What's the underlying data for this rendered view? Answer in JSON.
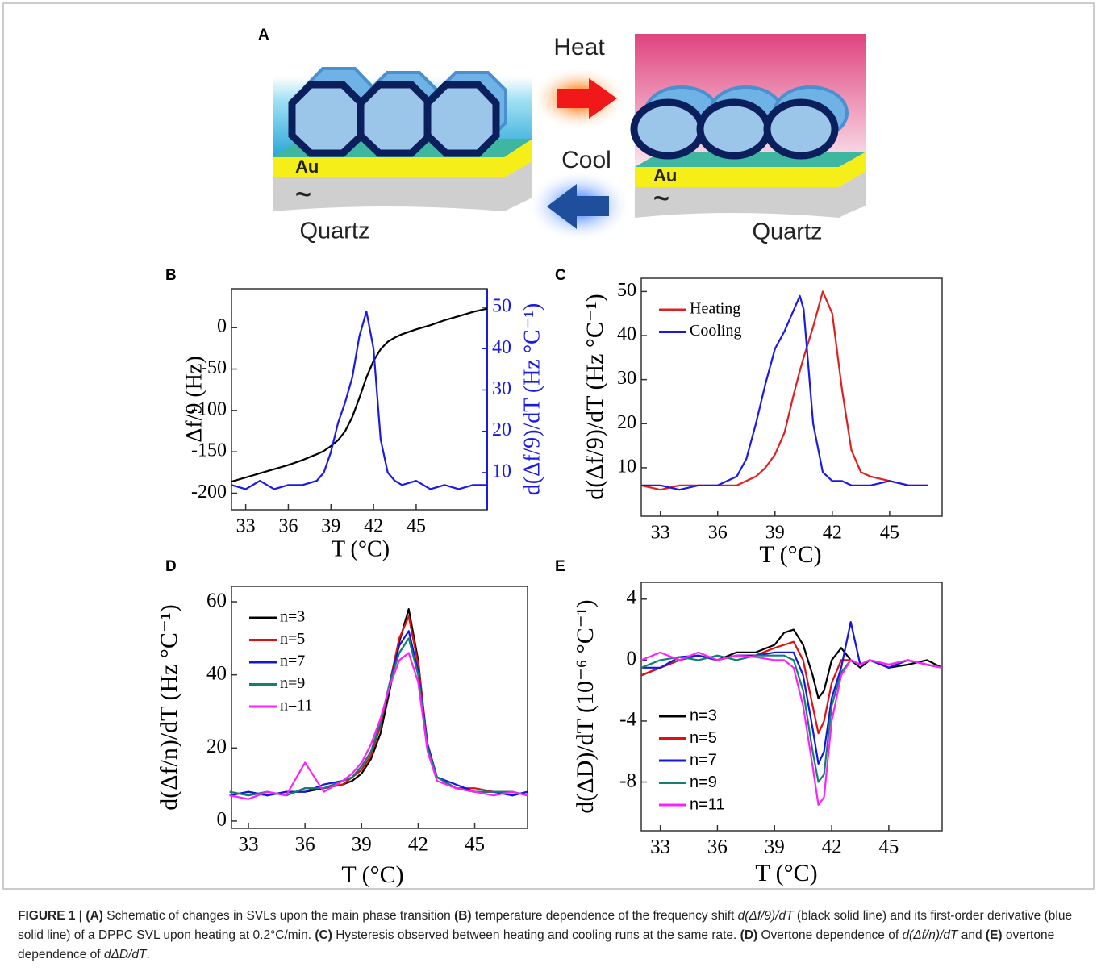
{
  "figure_a": {
    "label": "A",
    "heat": "Heat",
    "cool": "Cool",
    "left": {
      "au": "Au",
      "tilde": "~",
      "quartz": "Quartz"
    },
    "right": {
      "au": "Au",
      "tilde": "~",
      "quartz": "Quartz"
    }
  },
  "chart_data": [
    {
      "type": "line",
      "panel_label": "B",
      "xlabel": "T (°C)",
      "ylabel": "Δf/9 (Hz)",
      "y2label": "d(Δf/9)/dT (Hz °C⁻¹)",
      "xlim": [
        32,
        50
      ],
      "xticks": [
        33,
        36,
        39,
        42,
        45
      ],
      "ylim": [
        -220,
        47
      ],
      "yticks": [
        0,
        -50,
        -100,
        -150,
        -200
      ],
      "y2lim": [
        1,
        54.5
      ],
      "y2ticks": [
        10,
        20,
        30,
        40,
        50
      ],
      "y2color": "#1a1ae6",
      "x": [
        32,
        33,
        34,
        35,
        36,
        37,
        38,
        38.5,
        39,
        39.5,
        40,
        40.5,
        41,
        41.5,
        42,
        42.5,
        43,
        43.5,
        44,
        45,
        46,
        47,
        48,
        49,
        50
      ],
      "series": [
        {
          "color": "#000000",
          "values": [
            -186,
            -181,
            -176,
            -171,
            -166,
            -160,
            -153,
            -149,
            -143,
            -136,
            -125,
            -108,
            -85,
            -60,
            -40,
            -26,
            -17,
            -12,
            -8,
            -2,
            3,
            9,
            14,
            19,
            23
          ]
        },
        {
          "color": "#1a1ae6",
          "axis": "y2",
          "values": [
            7,
            6,
            8,
            6,
            7,
            7,
            8,
            10,
            15,
            22,
            27,
            33,
            43,
            49,
            40,
            18,
            10,
            8,
            7,
            8,
            6,
            7,
            6,
            7,
            7
          ]
        }
      ]
    },
    {
      "type": "line",
      "panel_label": "C",
      "xlabel": "T (°C)",
      "ylabel": "d(Δf/9)/dT (Hz °C⁻¹)",
      "xlim": [
        32,
        47.75
      ],
      "xticks": [
        33,
        36,
        39,
        42,
        45
      ],
      "ylim": [
        -1,
        53
      ],
      "yticks": [
        10,
        20,
        30,
        40,
        50
      ],
      "legend": "upper left",
      "x": [
        32,
        33,
        34,
        35,
        36,
        37,
        37.5,
        38,
        38.5,
        39,
        39.5,
        40,
        40.3,
        40.5,
        41,
        41.5,
        42,
        42.5,
        43,
        43.5,
        44,
        45,
        46,
        47
      ],
      "series": [
        {
          "name": "Heating",
          "color": "#e02020",
          "values": [
            6,
            5,
            6,
            6,
            6,
            6,
            7,
            8,
            10,
            13,
            18,
            27,
            32,
            35,
            42,
            50,
            45,
            28,
            14,
            9,
            8,
            7,
            6,
            6
          ]
        },
        {
          "name": "Cooling",
          "color": "#1a1ae6",
          "values": [
            6,
            6,
            5,
            6,
            6,
            8,
            12,
            20,
            29,
            37,
            41,
            46,
            49,
            46,
            20,
            9,
            7,
            7,
            6,
            6,
            6,
            7,
            6,
            6
          ]
        }
      ]
    },
    {
      "type": "line",
      "panel_label": "D",
      "xlabel": "T (°C)",
      "ylabel": "d(Δf/n)/dT (Hz °C⁻¹)",
      "xlim": [
        32.1,
        47.8
      ],
      "xticks": [
        33,
        36,
        39,
        42,
        45
      ],
      "ylim": [
        -2,
        64.2
      ],
      "yticks": [
        0,
        20,
        40,
        60
      ],
      "legend": "upper left",
      "x": [
        32,
        33,
        34,
        35,
        36,
        37,
        38,
        38.5,
        39,
        39.5,
        40,
        40.5,
        41,
        41.5,
        42,
        42.5,
        43,
        44,
        45,
        46,
        47,
        47.8
      ],
      "series": [
        {
          "name": "n=3",
          "color": "#000000",
          "values": [
            7,
            8,
            7,
            8,
            8,
            9,
            10,
            11,
            13,
            17,
            24,
            36,
            49,
            58,
            44,
            20,
            12,
            9,
            8,
            8,
            7,
            8
          ]
        },
        {
          "name": "n=5",
          "color": "#e01010",
          "values": [
            8,
            7,
            8,
            7,
            9,
            9,
            10,
            12,
            14,
            18,
            26,
            38,
            50,
            56,
            43,
            21,
            12,
            9,
            9,
            8,
            8,
            7
          ]
        },
        {
          "name": "n=7",
          "color": "#1515e0",
          "values": [
            7,
            8,
            7,
            8,
            8,
            10,
            11,
            12,
            15,
            19,
            27,
            38,
            48,
            52,
            41,
            21,
            12,
            10,
            8,
            8,
            7,
            8
          ]
        },
        {
          "name": "n=9",
          "color": "#108070",
          "values": [
            8,
            7,
            8,
            7,
            9,
            9,
            11,
            12,
            15,
            19,
            27,
            38,
            46,
            50,
            40,
            20,
            12,
            9,
            8,
            8,
            8,
            7
          ]
        },
        {
          "name": "n=11",
          "color": "#ff20ff",
          "values": [
            7,
            6,
            8,
            7,
            16,
            8,
            11,
            13,
            16,
            21,
            28,
            37,
            44,
            46,
            38,
            19,
            11,
            9,
            8,
            7,
            8,
            7
          ]
        }
      ]
    },
    {
      "type": "line",
      "panel_label": "E",
      "xlabel": "T (°C)",
      "ylabel": "d(ΔD)/dT (10⁻⁶ °C⁻¹)",
      "xlim": [
        32,
        47.8
      ],
      "xticks": [
        33,
        36,
        39,
        42,
        45
      ],
      "ylim": [
        -11.2,
        5.1
      ],
      "yticks": [
        4,
        0,
        -4,
        -8
      ],
      "legend": "lower left",
      "x": [
        32,
        33,
        34,
        35,
        36,
        37,
        38,
        39,
        39.5,
        40,
        40.5,
        41,
        41.3,
        41.6,
        42,
        42.5,
        43,
        43.5,
        44,
        45,
        46,
        47,
        47.8
      ],
      "series": [
        {
          "name": "n=3",
          "color": "#000000",
          "values": [
            -1,
            -0.5,
            0,
            0.3,
            0,
            0.5,
            0.5,
            1,
            1.8,
            2,
            1,
            -1,
            -2.5,
            -2,
            0,
            0.8,
            0,
            -0.5,
            0,
            -0.5,
            -0.3,
            0,
            -0.5
          ]
        },
        {
          "name": "n=5",
          "color": "#e01010",
          "values": [
            -1,
            -0.5,
            0,
            0.3,
            0,
            0.3,
            0.3,
            0.8,
            1,
            1.2,
            0,
            -3,
            -4.8,
            -4,
            -1.5,
            0,
            0,
            -0.3,
            0,
            -0.5,
            0,
            -0.3,
            -0.5
          ]
        },
        {
          "name": "n=7",
          "color": "#1515e0",
          "values": [
            -0.5,
            -0.5,
            0.2,
            0.3,
            0,
            0.3,
            0.3,
            0.5,
            0.5,
            0.5,
            -1,
            -4.5,
            -6.8,
            -6,
            -2.5,
            -0.5,
            2.5,
            -0.3,
            0,
            -0.5,
            0,
            -0.3,
            -0.5
          ]
        },
        {
          "name": "n=9",
          "color": "#108070",
          "values": [
            -0.5,
            0,
            0.2,
            0,
            0.3,
            0,
            0.3,
            0.3,
            0.3,
            0,
            -2,
            -6,
            -8,
            -7.5,
            -3,
            -0.8,
            0,
            -0.3,
            0,
            -0.3,
            0,
            -0.3,
            -0.5
          ]
        },
        {
          "name": "n=11",
          "color": "#ff20ff",
          "values": [
            0,
            0.5,
            0,
            0.5,
            0,
            0.3,
            0.2,
            0,
            0,
            -0.5,
            -3,
            -7,
            -9.5,
            -9,
            -4,
            -1,
            0,
            -0.3,
            0,
            -0.3,
            0,
            -0.3,
            -0.5
          ]
        }
      ]
    }
  ],
  "caption": {
    "runs": [
      "FIGURE 1 | (A)",
      " Schematic of changes in SVLs upon the main phase transition ",
      "(B)",
      " temperature dependence of the frequency shift ",
      "d(Δf/9)/dT",
      " (black solid line) and its first-order derivative (blue solid line) of a DPPC SVL upon heating at 0.2°C/min. ",
      "(C)",
      " Hysteresis observed between heating and cooling runs at the same rate. ",
      "(D)",
      " Overtone dependence of ",
      "d(Δf/n)/dT",
      " and ",
      "(E)",
      " overtone dependence of ",
      "dΔD/dT",
      "."
    ]
  }
}
